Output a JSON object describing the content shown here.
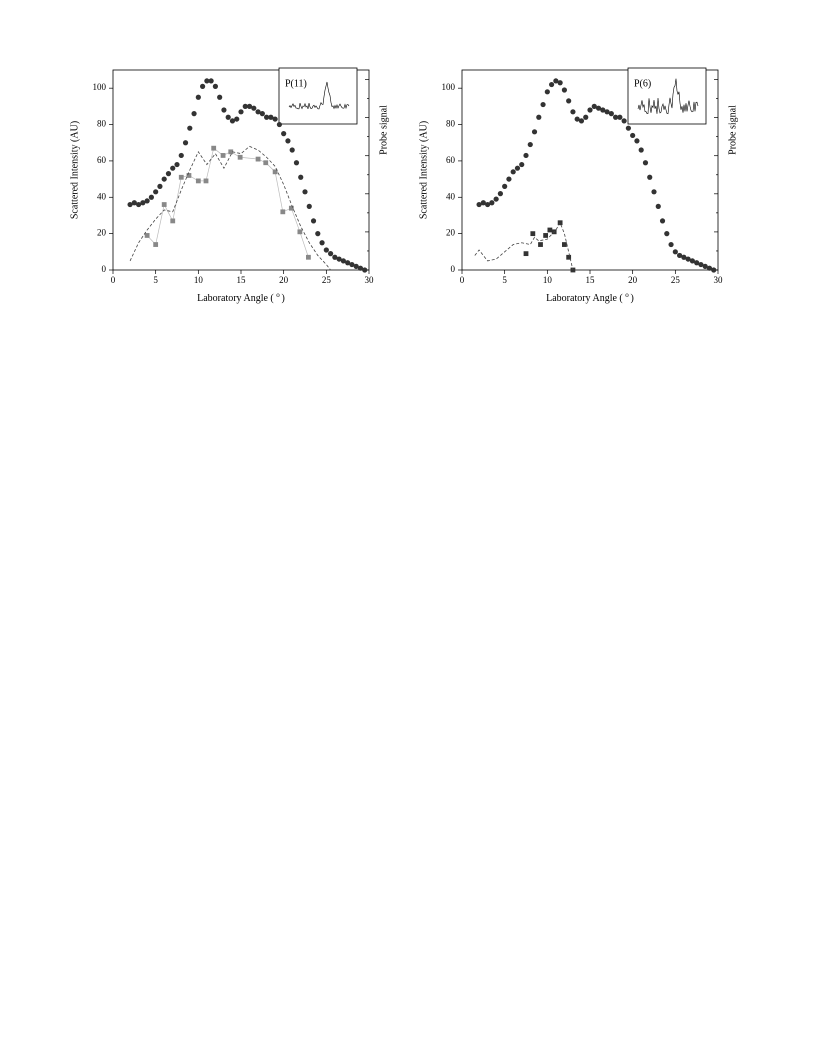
{
  "chart_data": [
    {
      "type": "scatter",
      "xlabel": [
        "Laboratory Angle (",
        "o",
        ")"
      ],
      "ylabel": "Scattered Intensity (AU)",
      "y2label": "Probe signal",
      "inset_label": "P(11)",
      "xlim": [
        0,
        30
      ],
      "xticks": [
        0,
        5,
        10,
        15,
        20,
        25,
        30
      ],
      "ylim": [
        0,
        110
      ],
      "yticks": [
        0,
        20,
        40,
        60,
        80,
        100
      ],
      "series": [
        {
          "mode": "markers",
          "marker": "circle",
          "color": "#333333",
          "x": [
            2,
            2.5,
            3,
            3.5,
            4,
            4.5,
            5,
            5.5,
            6,
            6.5,
            7,
            7.5,
            8,
            8.5,
            9,
            9.5,
            10,
            10.5,
            11,
            11.5,
            12,
            12.5,
            13,
            13.5,
            14,
            14.5,
            15,
            15.5,
            16,
            16.5,
            17,
            17.5,
            18,
            18.5,
            19,
            19.5,
            20,
            20.5,
            21,
            21.5,
            22,
            22.5,
            23,
            23.5,
            24,
            24.5,
            25,
            25.5,
            26,
            26.5,
            27,
            27.5,
            28,
            28.5,
            29,
            29.5
          ],
          "values": [
            36,
            37,
            36,
            37,
            38,
            40,
            43,
            46,
            50,
            53,
            56,
            58,
            63,
            70,
            78,
            86,
            95,
            101,
            104,
            104,
            101,
            95,
            88,
            84,
            82,
            83,
            87,
            90,
            90,
            89,
            87,
            86,
            84,
            84,
            83,
            80,
            75,
            71,
            66,
            59,
            51,
            43,
            35,
            27,
            20,
            15,
            11,
            9,
            7,
            6,
            5,
            4,
            3,
            2,
            1,
            0
          ]
        },
        {
          "mode": "markers+lines",
          "marker": "square",
          "color": "#888888",
          "line_color": "#bbbbbb",
          "x": [
            4,
            5,
            6,
            7,
            8,
            8.9,
            10,
            10.9,
            11.8,
            12.9,
            13.8,
            14.9,
            17,
            17.9,
            19,
            19.9,
            20.9,
            21.9,
            22.9
          ],
          "values": [
            19,
            14,
            36,
            27,
            51,
            52,
            49,
            49,
            67,
            63,
            65,
            62,
            61,
            59,
            54,
            32,
            34,
            21,
            7
          ]
        },
        {
          "mode": "lines",
          "dash": true,
          "color": "#444444",
          "x": [
            2,
            3,
            4,
            5,
            6,
            7,
            8,
            9,
            10,
            11,
            12,
            13,
            14,
            15,
            16,
            17,
            18,
            19,
            20,
            21,
            22,
            23,
            24,
            25,
            25.5
          ],
          "values": [
            5,
            15,
            22,
            28,
            33,
            32,
            44,
            55,
            65,
            58,
            64,
            56,
            65,
            64,
            68,
            66,
            62,
            57,
            47,
            35,
            24,
            15,
            8,
            3,
            0
          ]
        }
      ]
    },
    {
      "type": "scatter",
      "xlabel": [
        "Laboratory Angle (",
        "o",
        ")"
      ],
      "ylabel": "Scattered Intensity (AU)",
      "y2label": "Probe signal",
      "inset_label": "P(6)",
      "xlim": [
        0,
        30
      ],
      "xticks": [
        0,
        5,
        10,
        15,
        20,
        25,
        30
      ],
      "ylim": [
        0,
        110
      ],
      "yticks": [
        0,
        20,
        40,
        60,
        80,
        100
      ],
      "series": [
        {
          "mode": "markers",
          "marker": "circle",
          "color": "#333333",
          "x": [
            2,
            2.5,
            3,
            3.5,
            4,
            4.5,
            5,
            5.5,
            6,
            6.5,
            7,
            7.5,
            8,
            8.5,
            9,
            9.5,
            10,
            10.5,
            11,
            11.5,
            12,
            12.5,
            13,
            13.5,
            14,
            14.5,
            15,
            15.5,
            16,
            16.5,
            17,
            17.5,
            18,
            18.5,
            19,
            19.5,
            20,
            20.5,
            21,
            21.5,
            22,
            22.5,
            23,
            23.5,
            24,
            24.5,
            25,
            25.5,
            26,
            26.5,
            27,
            27.5,
            28,
            28.5,
            29,
            29.5
          ],
          "values": [
            36,
            37,
            36,
            37,
            39,
            42,
            46,
            50,
            54,
            56,
            58,
            63,
            69,
            76,
            84,
            91,
            98,
            102,
            104,
            103,
            99,
            93,
            87,
            83,
            82,
            84,
            88,
            90,
            89,
            88,
            87,
            86,
            84,
            84,
            82,
            78,
            74,
            71,
            66,
            59,
            51,
            43,
            35,
            27,
            20,
            14,
            10,
            8,
            7,
            6,
            5,
            4,
            3,
            2,
            1,
            0
          ]
        },
        {
          "mode": "markers",
          "marker": "square",
          "color": "#333333",
          "x": [
            7.5,
            8.3,
            9.2,
            9.8,
            10.3,
            10.8,
            11.5,
            12,
            12.5,
            13
          ],
          "values": [
            9,
            20,
            14,
            19,
            22,
            21,
            26,
            14,
            7,
            0
          ]
        },
        {
          "mode": "lines",
          "dash": true,
          "color": "#444444",
          "x": [
            1.5,
            2,
            2.5,
            3,
            4,
            5,
            6,
            7,
            8,
            8.5,
            9,
            10,
            11,
            11.5,
            12,
            12.5,
            13
          ],
          "values": [
            8,
            11,
            8,
            5,
            6,
            10,
            14,
            15,
            14,
            18,
            16,
            17,
            22,
            26,
            20,
            10,
            0
          ]
        }
      ]
    }
  ]
}
